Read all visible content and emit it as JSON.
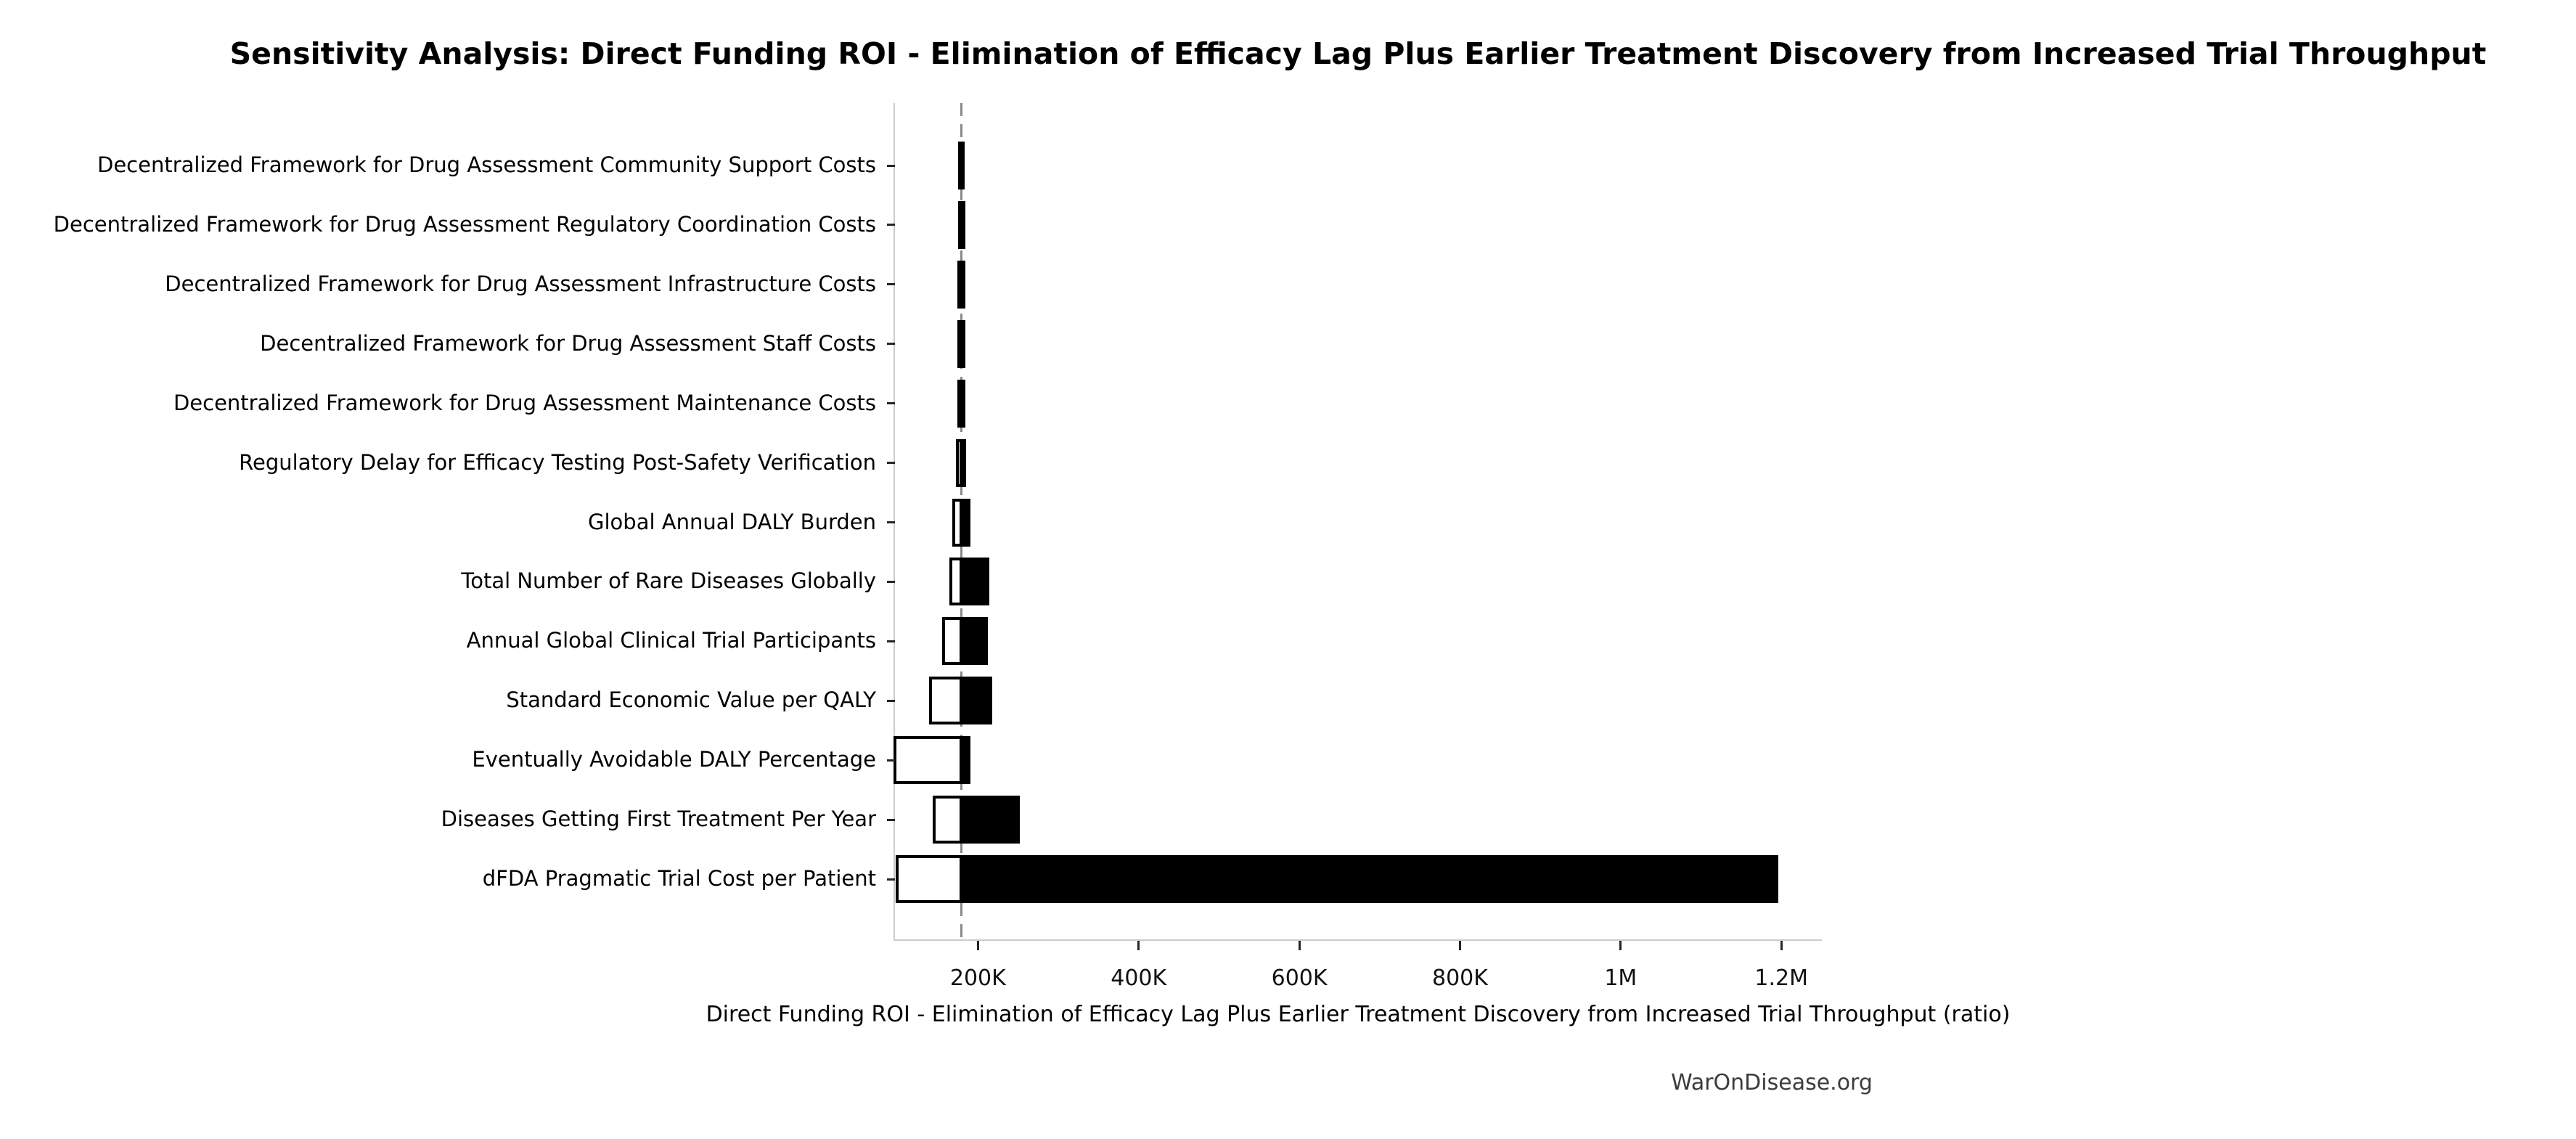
{
  "watermark": "WarOnDisease.org",
  "chart_data": {
    "type": "bar",
    "subtype": "tornado-sensitivity-horizontal",
    "title": "Sensitivity Analysis: Direct Funding ROI - Elimination of Efficacy Lag Plus Earlier Treatment Discovery from Increased Trial Throughput",
    "xlabel": "Direct Funding ROI - Elimination of Efficacy Lag Plus Earlier Treatment Discovery from Increased Trial Throughput (ratio)",
    "ylabel": "",
    "grid": false,
    "legend": "none",
    "baseline": 179200,
    "xlim": [
      96700,
      1250400
    ],
    "x_ticks": [
      {
        "value": 200000,
        "label": "200K"
      },
      {
        "value": 400000,
        "label": "400K"
      },
      {
        "value": 600000,
        "label": "600K"
      },
      {
        "value": 800000,
        "label": "800K"
      },
      {
        "value": 1000000,
        "label": "1M"
      },
      {
        "value": 1200000,
        "label": "1.2M"
      }
    ],
    "categories": [
      "Decentralized Framework for Drug Assessment Community Support Costs",
      "Decentralized Framework for Drug Assessment Regulatory Coordination Costs",
      "Decentralized Framework for Drug Assessment Infrastructure Costs",
      "Decentralized Framework for Drug Assessment Staff Costs",
      "Decentralized Framework for Drug Assessment Maintenance Costs",
      "Regulatory Delay for Efficacy Testing Post-Safety Verification",
      "Global Annual DALY Burden",
      "Total Number of Rare Diseases Globally",
      "Annual Global Clinical Trial Participants",
      "Standard Economic Value per QALY",
      "Eventually Avoidable DALY Percentage",
      "Diseases Getting First Treatment Per Year",
      "dFDA Pragmatic Trial Cost per Patient"
    ],
    "series": [
      {
        "name": "low_result_white_bar",
        "fill": "#ffffff",
        "edge": "#000000",
        "values": [
          176800,
          176700,
          176600,
          176500,
          176400,
          174600,
          170000,
          166300,
          157300,
          140800,
          97000,
          145500,
          99500
        ]
      },
      {
        "name": "high_result_black_bar",
        "fill": "#000000",
        "edge": "#000000",
        "values": [
          183800,
          183900,
          184000,
          184100,
          184200,
          185000,
          190700,
          214200,
          212100,
          217500,
          191000,
          252400,
          1196200
        ]
      }
    ],
    "colors": {
      "baseline_dash": "#8a8a8a",
      "spine": "#cccccc",
      "tick": "#262626",
      "text": "#000000",
      "watermark": "#3c3c3c"
    }
  }
}
